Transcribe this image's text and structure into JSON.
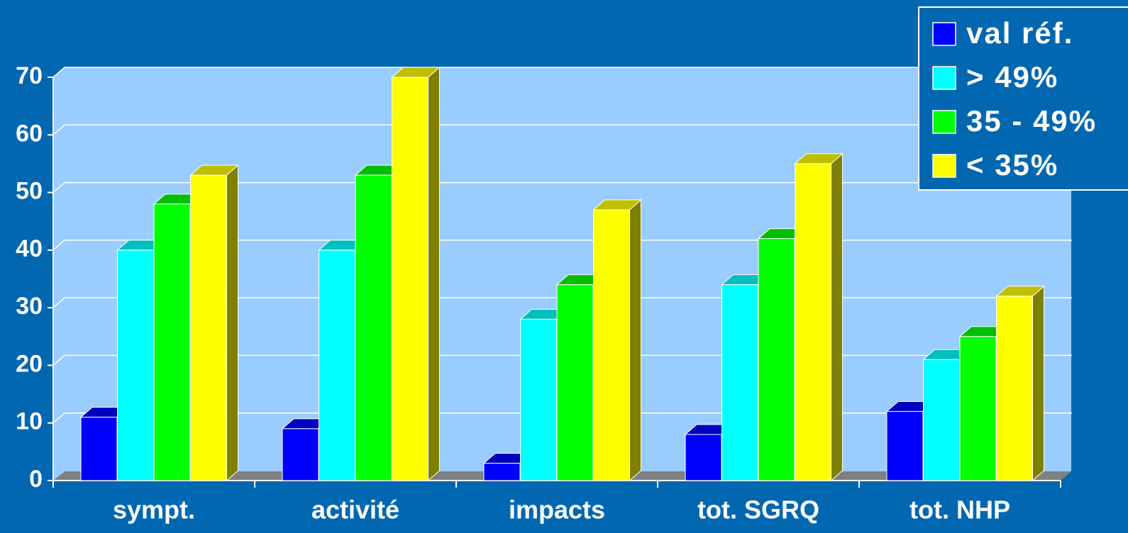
{
  "chart_data": {
    "type": "bar3d",
    "categories": [
      "sympt.",
      "activité",
      "impacts",
      "tot. SGRQ",
      "tot. NHP"
    ],
    "series": [
      {
        "name": "val réf.",
        "color": "#0000ff",
        "values": [
          11,
          9,
          3,
          8,
          12
        ]
      },
      {
        "name": "> 49%",
        "color": "#00ffff",
        "values": [
          40,
          40,
          28,
          34,
          21
        ]
      },
      {
        "name": "35 - 49%",
        "color": "#00ff00",
        "values": [
          48,
          53,
          34,
          42,
          25
        ]
      },
      {
        "name": "< 35%",
        "color": "#ffff00",
        "values": [
          53,
          70,
          47,
          55,
          32
        ]
      }
    ],
    "ylim": [
      0,
      70
    ],
    "yticks": [
      0,
      10,
      20,
      30,
      40,
      50,
      60,
      70
    ],
    "grid": true,
    "legend": "top-right"
  }
}
